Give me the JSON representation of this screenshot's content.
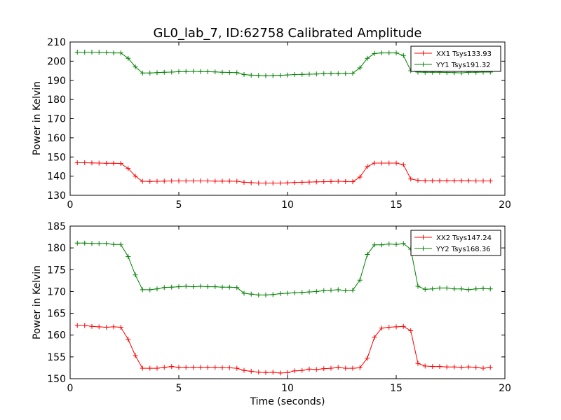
{
  "figure": {
    "title": "GL0_lab_7, ID:62758 Calibrated Amplitude"
  },
  "chart_data": [
    {
      "type": "line",
      "title": "GL0_lab_7, ID:62758 Calibrated Amplitude",
      "xlabel": "",
      "ylabel": "Power in Kelvin",
      "xlim": [
        0,
        20
      ],
      "ylim": [
        130,
        210
      ],
      "xticks": [
        0,
        5,
        10,
        15,
        20
      ],
      "yticks": [
        130,
        140,
        150,
        160,
        170,
        180,
        190,
        200,
        210
      ],
      "grid": false,
      "legend_position": "top-right",
      "marker": "+",
      "x": [
        0.33,
        0.67,
        1.0,
        1.33,
        1.67,
        2.0,
        2.33,
        2.67,
        3.0,
        3.33,
        3.67,
        4.0,
        4.33,
        4.67,
        5.0,
        5.33,
        5.67,
        6.0,
        6.33,
        6.67,
        7.0,
        7.33,
        7.67,
        8.0,
        8.33,
        8.67,
        9.0,
        9.33,
        9.67,
        10.0,
        10.33,
        10.67,
        11.0,
        11.33,
        11.67,
        12.0,
        12.33,
        12.67,
        13.0,
        13.33,
        13.67,
        14.0,
        14.33,
        14.67,
        15.0,
        15.33,
        15.67,
        16.0,
        16.33,
        16.67,
        17.0,
        17.33,
        17.67,
        18.0,
        18.33,
        18.67,
        19.0,
        19.33
      ],
      "series": [
        {
          "name": "XX1 Tsys133.93",
          "color": "#ff0000",
          "values": [
            147.0,
            147.0,
            146.9,
            146.8,
            146.7,
            146.7,
            146.6,
            144.0,
            140.0,
            137.3,
            137.2,
            137.3,
            137.4,
            137.5,
            137.5,
            137.5,
            137.5,
            137.5,
            137.5,
            137.4,
            137.4,
            137.4,
            137.3,
            136.8,
            136.6,
            136.4,
            136.4,
            136.4,
            136.4,
            136.5,
            136.7,
            136.8,
            136.9,
            137.0,
            137.1,
            137.2,
            137.3,
            137.2,
            137.1,
            139.5,
            145.0,
            146.8,
            146.8,
            146.8,
            146.8,
            146.0,
            138.5,
            137.8,
            137.6,
            137.6,
            137.6,
            137.6,
            137.6,
            137.6,
            137.6,
            137.5,
            137.5,
            137.5
          ]
        },
        {
          "name": "YY1 Tsys191.32",
          "color": "#008000",
          "values": [
            204.7,
            204.7,
            204.7,
            204.7,
            204.5,
            204.3,
            204.3,
            201.5,
            197.0,
            193.8,
            193.8,
            194.0,
            194.2,
            194.3,
            194.5,
            194.6,
            194.7,
            194.6,
            194.5,
            194.4,
            194.2,
            194.1,
            194.0,
            193.0,
            192.7,
            192.5,
            192.4,
            192.5,
            192.6,
            192.8,
            193.0,
            193.1,
            193.2,
            193.3,
            193.5,
            193.5,
            193.5,
            193.5,
            193.7,
            196.5,
            201.5,
            204.0,
            204.3,
            204.3,
            204.3,
            203.0,
            195.0,
            194.3,
            194.2,
            194.2,
            194.2,
            194.1,
            194.0,
            193.9,
            194.2,
            194.2,
            194.3,
            194.3
          ]
        }
      ]
    },
    {
      "type": "line",
      "title": "",
      "xlabel": "Time (seconds)",
      "ylabel": "Power in Kelvin",
      "xlim": [
        0,
        20
      ],
      "ylim": [
        150,
        185
      ],
      "xticks": [
        0,
        5,
        10,
        15,
        20
      ],
      "yticks": [
        150,
        155,
        160,
        165,
        170,
        175,
        180,
        185
      ],
      "grid": false,
      "legend_position": "top-right",
      "marker": "+",
      "x": [
        0.33,
        0.67,
        1.0,
        1.33,
        1.67,
        2.0,
        2.33,
        2.67,
        3.0,
        3.33,
        3.67,
        4.0,
        4.33,
        4.67,
        5.0,
        5.33,
        5.67,
        6.0,
        6.33,
        6.67,
        7.0,
        7.33,
        7.67,
        8.0,
        8.33,
        8.67,
        9.0,
        9.33,
        9.67,
        10.0,
        10.33,
        10.67,
        11.0,
        11.33,
        11.67,
        12.0,
        12.33,
        12.67,
        13.0,
        13.33,
        13.67,
        14.0,
        14.33,
        14.67,
        15.0,
        15.33,
        15.67,
        16.0,
        16.33,
        16.67,
        17.0,
        17.33,
        17.67,
        18.0,
        18.33,
        18.67,
        19.0,
        19.33
      ],
      "series": [
        {
          "name": "XX2 Tsys147.24",
          "color": "#ff0000",
          "values": [
            162.2,
            162.2,
            162.0,
            161.9,
            161.8,
            161.9,
            161.8,
            159.0,
            155.3,
            152.4,
            152.4,
            152.4,
            152.6,
            152.8,
            152.6,
            152.6,
            152.6,
            152.6,
            152.6,
            152.6,
            152.5,
            152.5,
            152.4,
            151.9,
            151.7,
            151.5,
            151.4,
            151.5,
            151.3,
            151.4,
            151.8,
            151.9,
            152.2,
            152.1,
            152.3,
            152.4,
            152.6,
            152.4,
            152.4,
            152.5,
            154.7,
            159.5,
            161.6,
            161.8,
            161.9,
            162.0,
            161.0,
            153.5,
            152.9,
            152.8,
            152.8,
            152.7,
            152.7,
            152.6,
            152.7,
            152.6,
            152.4,
            152.6
          ]
        },
        {
          "name": "YY2 Tsys168.36",
          "color": "#008000",
          "values": [
            181.1,
            181.1,
            181.0,
            181.0,
            181.0,
            180.8,
            180.8,
            178.0,
            173.8,
            170.4,
            170.4,
            170.6,
            170.9,
            171.0,
            171.1,
            171.2,
            171.1,
            171.2,
            171.1,
            171.1,
            171.0,
            171.0,
            170.9,
            169.6,
            169.4,
            169.2,
            169.2,
            169.3,
            169.5,
            169.6,
            169.7,
            169.8,
            169.9,
            170.0,
            170.2,
            170.3,
            170.4,
            170.2,
            170.3,
            172.6,
            178.5,
            180.7,
            180.7,
            180.9,
            180.8,
            181.0,
            179.7,
            171.2,
            170.5,
            170.6,
            170.8,
            170.8,
            170.6,
            170.6,
            170.4,
            170.6,
            170.7,
            170.6
          ]
        }
      ]
    }
  ]
}
